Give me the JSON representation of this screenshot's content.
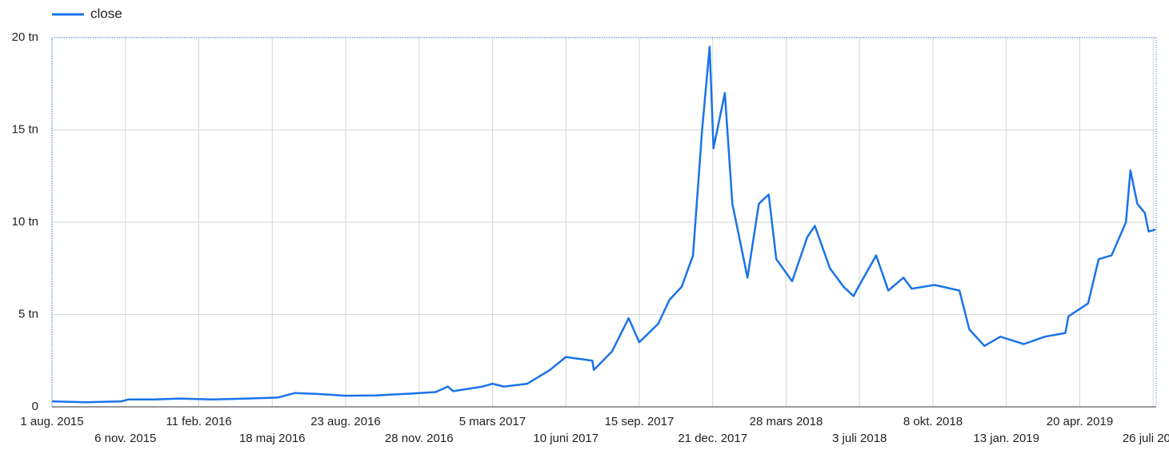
{
  "chart_data": {
    "type": "line",
    "x": [
      "2015-08-01",
      "2015-09-15",
      "2015-11-01",
      "2015-11-10",
      "2015-12-15",
      "2016-01-15",
      "2016-03-01",
      "2016-04-15",
      "2016-05-25",
      "2016-06-17",
      "2016-07-15",
      "2016-08-23",
      "2016-10-01",
      "2016-11-10",
      "2016-12-20",
      "2017-01-05",
      "2017-01-12",
      "2017-02-20",
      "2017-03-05",
      "2017-03-20",
      "2017-04-20",
      "2017-05-20",
      "2017-06-10",
      "2017-07-15",
      "2017-07-17",
      "2017-08-10",
      "2017-09-01",
      "2017-09-15",
      "2017-10-10",
      "2017-10-25",
      "2017-11-10",
      "2017-11-25",
      "2017-12-07",
      "2017-12-17",
      "2017-12-22",
      "2018-01-06",
      "2018-01-16",
      "2018-02-05",
      "2018-02-20",
      "2018-03-05",
      "2018-03-15",
      "2018-04-05",
      "2018-04-25",
      "2018-05-05",
      "2018-05-25",
      "2018-06-12",
      "2018-06-25",
      "2018-07-03",
      "2018-07-25",
      "2018-08-10",
      "2018-08-30",
      "2018-09-10",
      "2018-10-10",
      "2018-11-12",
      "2018-11-25",
      "2018-12-15",
      "2019-01-05",
      "2019-02-05",
      "2019-03-05",
      "2019-04-01",
      "2019-04-05",
      "2019-05-01",
      "2019-05-15",
      "2019-06-01",
      "2019-06-20",
      "2019-06-26",
      "2019-07-05",
      "2019-07-15",
      "2019-07-20",
      "2019-07-29"
    ],
    "series": [
      {
        "name": "close",
        "color": "#1a73e8",
        "values": [
          0.3,
          0.25,
          0.3,
          0.4,
          0.4,
          0.45,
          0.4,
          0.45,
          0.5,
          0.75,
          0.7,
          0.6,
          0.62,
          0.7,
          0.8,
          1.1,
          0.85,
          1.1,
          1.25,
          1.1,
          1.25,
          2.0,
          2.7,
          2.5,
          2.0,
          3.0,
          4.8,
          3.5,
          4.5,
          5.8,
          6.5,
          8.2,
          15.0,
          19.5,
          14.0,
          17.0,
          11.0,
          7.0,
          11.0,
          11.5,
          8.0,
          6.8,
          9.2,
          9.8,
          7.5,
          6.5,
          6.0,
          6.6,
          8.2,
          6.3,
          7.0,
          6.4,
          6.6,
          6.3,
          4.2,
          3.3,
          3.8,
          3.4,
          3.8,
          4.0,
          4.9,
          5.6,
          8.0,
          8.2,
          10.0,
          12.8,
          11.0,
          10.5,
          9.5,
          9.6
        ]
      }
    ],
    "xlim": [
      "2015-08-01",
      "2019-07-30"
    ],
    "xticks": [
      {
        "value": "2015-08-01",
        "label": "1 aug. 2015"
      },
      {
        "value": "2015-11-06",
        "label": "6 nov. 2015"
      },
      {
        "value": "2016-02-11",
        "label": "11 feb. 2016"
      },
      {
        "value": "2016-05-18",
        "label": "18 maj 2016"
      },
      {
        "value": "2016-08-23",
        "label": "23 aug. 2016"
      },
      {
        "value": "2016-11-28",
        "label": "28 nov. 2016"
      },
      {
        "value": "2017-03-05",
        "label": "5 mars 2017"
      },
      {
        "value": "2017-06-10",
        "label": "10 juni 2017"
      },
      {
        "value": "2017-09-15",
        "label": "15 sep. 2017"
      },
      {
        "value": "2017-12-21",
        "label": "21 dec. 2017"
      },
      {
        "value": "2018-03-28",
        "label": "28 mars 2018"
      },
      {
        "value": "2018-07-03",
        "label": "3 juli 2018"
      },
      {
        "value": "2018-10-08",
        "label": "8 okt. 2018"
      },
      {
        "value": "2019-01-13",
        "label": "13 jan. 2019"
      },
      {
        "value": "2019-04-20",
        "label": "20 apr. 2019"
      },
      {
        "value": "2019-07-26",
        "label": "26 juli 2019"
      }
    ],
    "ylim": [
      0,
      20
    ],
    "yticks": [
      0,
      {
        "value": 5,
        "label": "5 tn"
      },
      {
        "value": 10,
        "label": "10 tn"
      },
      {
        "value": 15,
        "label": "15 tn"
      },
      {
        "value": 20,
        "label": "20 tn"
      }
    ],
    "grid": true,
    "legend": "top-left"
  }
}
